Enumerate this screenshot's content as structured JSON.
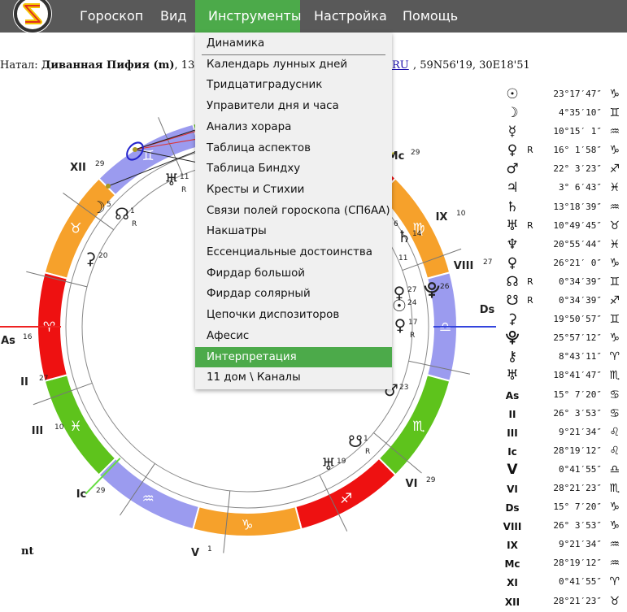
{
  "nav": {
    "logo": "S",
    "items": [
      "Гороскоп",
      "Вид",
      "Инструменты",
      "Настройка",
      "Помощь"
    ],
    "active": "Инструменты"
  },
  "natal": {
    "prefix": "Натал: ",
    "name": "Диванная Пифия (m)",
    "date_visible": ", 13.01.20",
    "link": "RU",
    "coords": ", 59N56'19, 30E18'51"
  },
  "dropdown": {
    "items": [
      "Динамика",
      "Календарь лунных дней",
      "Тридцатиградусник",
      "Управители дня и часа",
      "Анализ хорара",
      "Таблица аспектов",
      "Таблица Биндху",
      "Кресты и Стихии",
      "Связи полей гороскопа (СП6АА)",
      "Накшатры",
      "Ессенциальные достоинства",
      "Фирдар большой",
      "Фирдар солярный",
      "Цепочки диспозиторов",
      "Афесис",
      "Интерпретация",
      "11 дом \\ Каналы"
    ],
    "highlighted": "Интерпретация"
  },
  "footer_text": "nt",
  "planets": [
    {
      "glyph": "☉",
      "retro": "",
      "pos": "23°17′47″",
      "sign": "♑"
    },
    {
      "glyph": "☽",
      "retro": "",
      "pos": "4°35′10″",
      "sign": "♊"
    },
    {
      "glyph": "☿",
      "retro": "",
      "pos": "10°15′ 1″",
      "sign": "♒"
    },
    {
      "glyph": "♀",
      "retro": "R",
      "pos": "16° 1′58″",
      "sign": "♑"
    },
    {
      "glyph": "♂",
      "retro": "",
      "pos": "22° 3′23″",
      "sign": "♐"
    },
    {
      "glyph": "♃",
      "retro": "",
      "pos": "3° 6′43″",
      "sign": "♓"
    },
    {
      "glyph": "♄",
      "retro": "",
      "pos": "13°18′39″",
      "sign": "♒"
    },
    {
      "glyph": "♅",
      "retro": "R",
      "pos": "10°49′45″",
      "sign": "♉"
    },
    {
      "glyph": "♆",
      "retro": "",
      "pos": "20°55′44″",
      "sign": "♓"
    },
    {
      "glyph": "♀",
      "retro": "",
      "pos": "26°21′ 0″",
      "sign": "♑"
    },
    {
      "glyph": "☊",
      "retro": "R",
      "pos": "0°34′39″",
      "sign": "♊"
    },
    {
      "glyph": "☋",
      "retro": "R",
      "pos": "0°34′39″",
      "sign": "♐"
    },
    {
      "glyph": "⚳",
      "retro": "",
      "pos": "19°50′57″",
      "sign": "♊"
    },
    {
      "glyph": "⯓",
      "retro": "",
      "pos": "25°57′12″",
      "sign": "♑"
    },
    {
      "glyph": "⚷",
      "retro": "",
      "pos": "8°43′11″",
      "sign": "♈"
    },
    {
      "glyph": "♅",
      "retro": "",
      "pos": "18°41′47″",
      "sign": "♏"
    },
    {
      "glyph": "As",
      "retro": "",
      "pos": "15° 7′20″",
      "sign": "♋"
    },
    {
      "glyph": "II",
      "retro": "",
      "pos": "26° 3′53″",
      "sign": "♋"
    },
    {
      "glyph": "III",
      "retro": "",
      "pos": "9°21′34″",
      "sign": "♌"
    },
    {
      "glyph": "Ic",
      "retro": "",
      "pos": "28°19′12″",
      "sign": "♌"
    },
    {
      "glyph": "V",
      "retro": "",
      "pos": "0°41′55″",
      "sign": "♎"
    },
    {
      "glyph": "VI",
      "retro": "",
      "pos": "28°21′23″",
      "sign": "♏"
    },
    {
      "glyph": "Ds",
      "retro": "",
      "pos": "15° 7′20″",
      "sign": "♑"
    },
    {
      "glyph": "VIII",
      "retro": "",
      "pos": "26° 3′53″",
      "sign": "♑"
    },
    {
      "glyph": "IX",
      "retro": "",
      "pos": "9°21′34″",
      "sign": "♒"
    },
    {
      "glyph": "Mc",
      "retro": "",
      "pos": "28°19′12″",
      "sign": "♒"
    },
    {
      "glyph": "XI",
      "retro": "",
      "pos": "0°41′55″",
      "sign": "♈"
    },
    {
      "glyph": "XII",
      "retro": "",
      "pos": "28°21′23″",
      "sign": "♉"
    }
  ],
  "wheel": {
    "signs": [
      {
        "glyph": "♉",
        "color": "#f6a12b"
      },
      {
        "glyph": "♊",
        "color": "#9b9bef"
      },
      {
        "glyph": "♋",
        "color": "#5ec31c"
      },
      {
        "glyph": "♌",
        "color": "#ee1111"
      },
      {
        "glyph": "♍",
        "color": "#f6a12b"
      },
      {
        "glyph": "♎",
        "color": "#9b9bef"
      },
      {
        "glyph": "♏",
        "color": "#5ec31c"
      },
      {
        "glyph": "♐",
        "color": "#ee1111"
      },
      {
        "glyph": "♑",
        "color": "#f6a12b"
      },
      {
        "glyph": "♒",
        "color": "#9b9bef"
      },
      {
        "glyph": "♓",
        "color": "#5ec31c"
      },
      {
        "glyph": "♈",
        "color": "#ee1111"
      }
    ],
    "house_labels": [
      {
        "label": "XII",
        "deg": "29"
      },
      {
        "label": "As",
        "deg": "16"
      },
      {
        "label": "II",
        "deg": "27"
      },
      {
        "label": "III",
        "deg": "10"
      },
      {
        "label": "Ic",
        "deg": "29"
      },
      {
        "label": "V",
        "deg": "1"
      },
      {
        "label": "VI",
        "deg": "29"
      },
      {
        "label": "Ds",
        "deg": "16"
      },
      {
        "label": "VIII",
        "deg": "27"
      },
      {
        "label": "IX",
        "deg": "10"
      },
      {
        "label": "Mc",
        "deg": "29"
      }
    ],
    "chart_planets": [
      {
        "glyph": "☊",
        "deg": "1",
        "retro": "R"
      },
      {
        "glyph": "☽",
        "deg": "5",
        "retro": ""
      },
      {
        "glyph": "♅",
        "deg": "11",
        "retro": "R"
      },
      {
        "glyph": "⚳",
        "deg": "20",
        "retro": ""
      },
      {
        "glyph": "♄",
        "deg": "14",
        "retro": ""
      },
      {
        "glyph": "♀",
        "deg": "27",
        "retro": ""
      },
      {
        "glyph": "☉",
        "deg": "24",
        "retro": ""
      },
      {
        "glyph": "⯓",
        "deg": "26",
        "retro": ""
      },
      {
        "glyph": "♀",
        "deg": "17",
        "retro": "R"
      },
      {
        "glyph": "♂",
        "deg": "23",
        "retro": ""
      },
      {
        "glyph": "☋",
        "deg": "1",
        "retro": "R"
      },
      {
        "glyph": "♅",
        "deg": "19",
        "retro": ""
      }
    ],
    "partial_label": "11",
    "partial_label_2": "6"
  }
}
